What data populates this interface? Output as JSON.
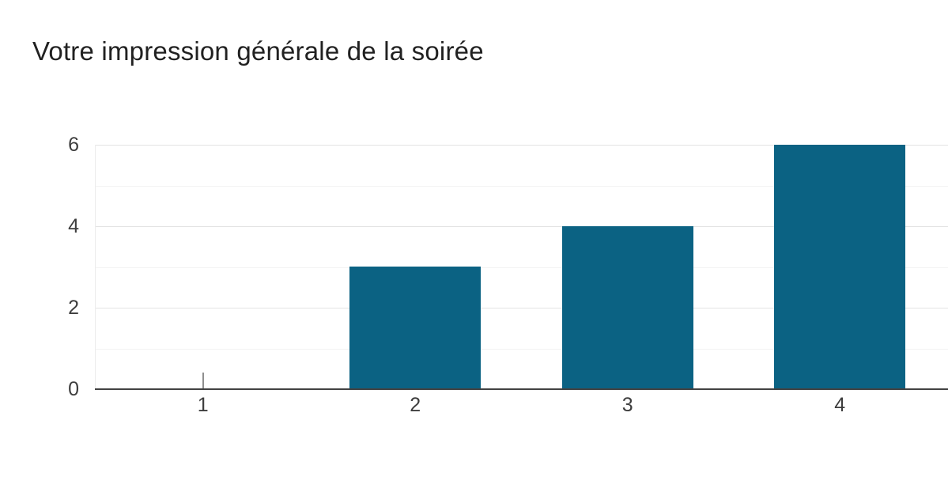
{
  "header": {
    "title": "Votre impression générale de la soirée"
  },
  "colors": {
    "background": "#ffffff",
    "title_text": "#212121",
    "bar": "#0b6283",
    "zero_bar_marker": "#8f8f8f",
    "axis_line": "#424242",
    "tick_label": "#3d3d3d",
    "gridline_major": "#e3e3e3",
    "gridline_minor": "#f3f3f3"
  },
  "chart_data": {
    "type": "bar",
    "orientation": "vertical",
    "title": "Votre impression générale de la soirée",
    "categories": [
      "1",
      "2",
      "3",
      "4"
    ],
    "values": [
      0,
      3,
      4,
      6
    ],
    "xlabel": "",
    "ylabel": "",
    "ylim": [
      0,
      6
    ],
    "yticks": [
      0,
      2,
      4,
      6
    ],
    "minor_gridlines_at": [
      1,
      3,
      5
    ],
    "grid": true,
    "legend": "none",
    "bar_color": "#0b6283",
    "zero_value_shown_as_thin_line": true
  }
}
